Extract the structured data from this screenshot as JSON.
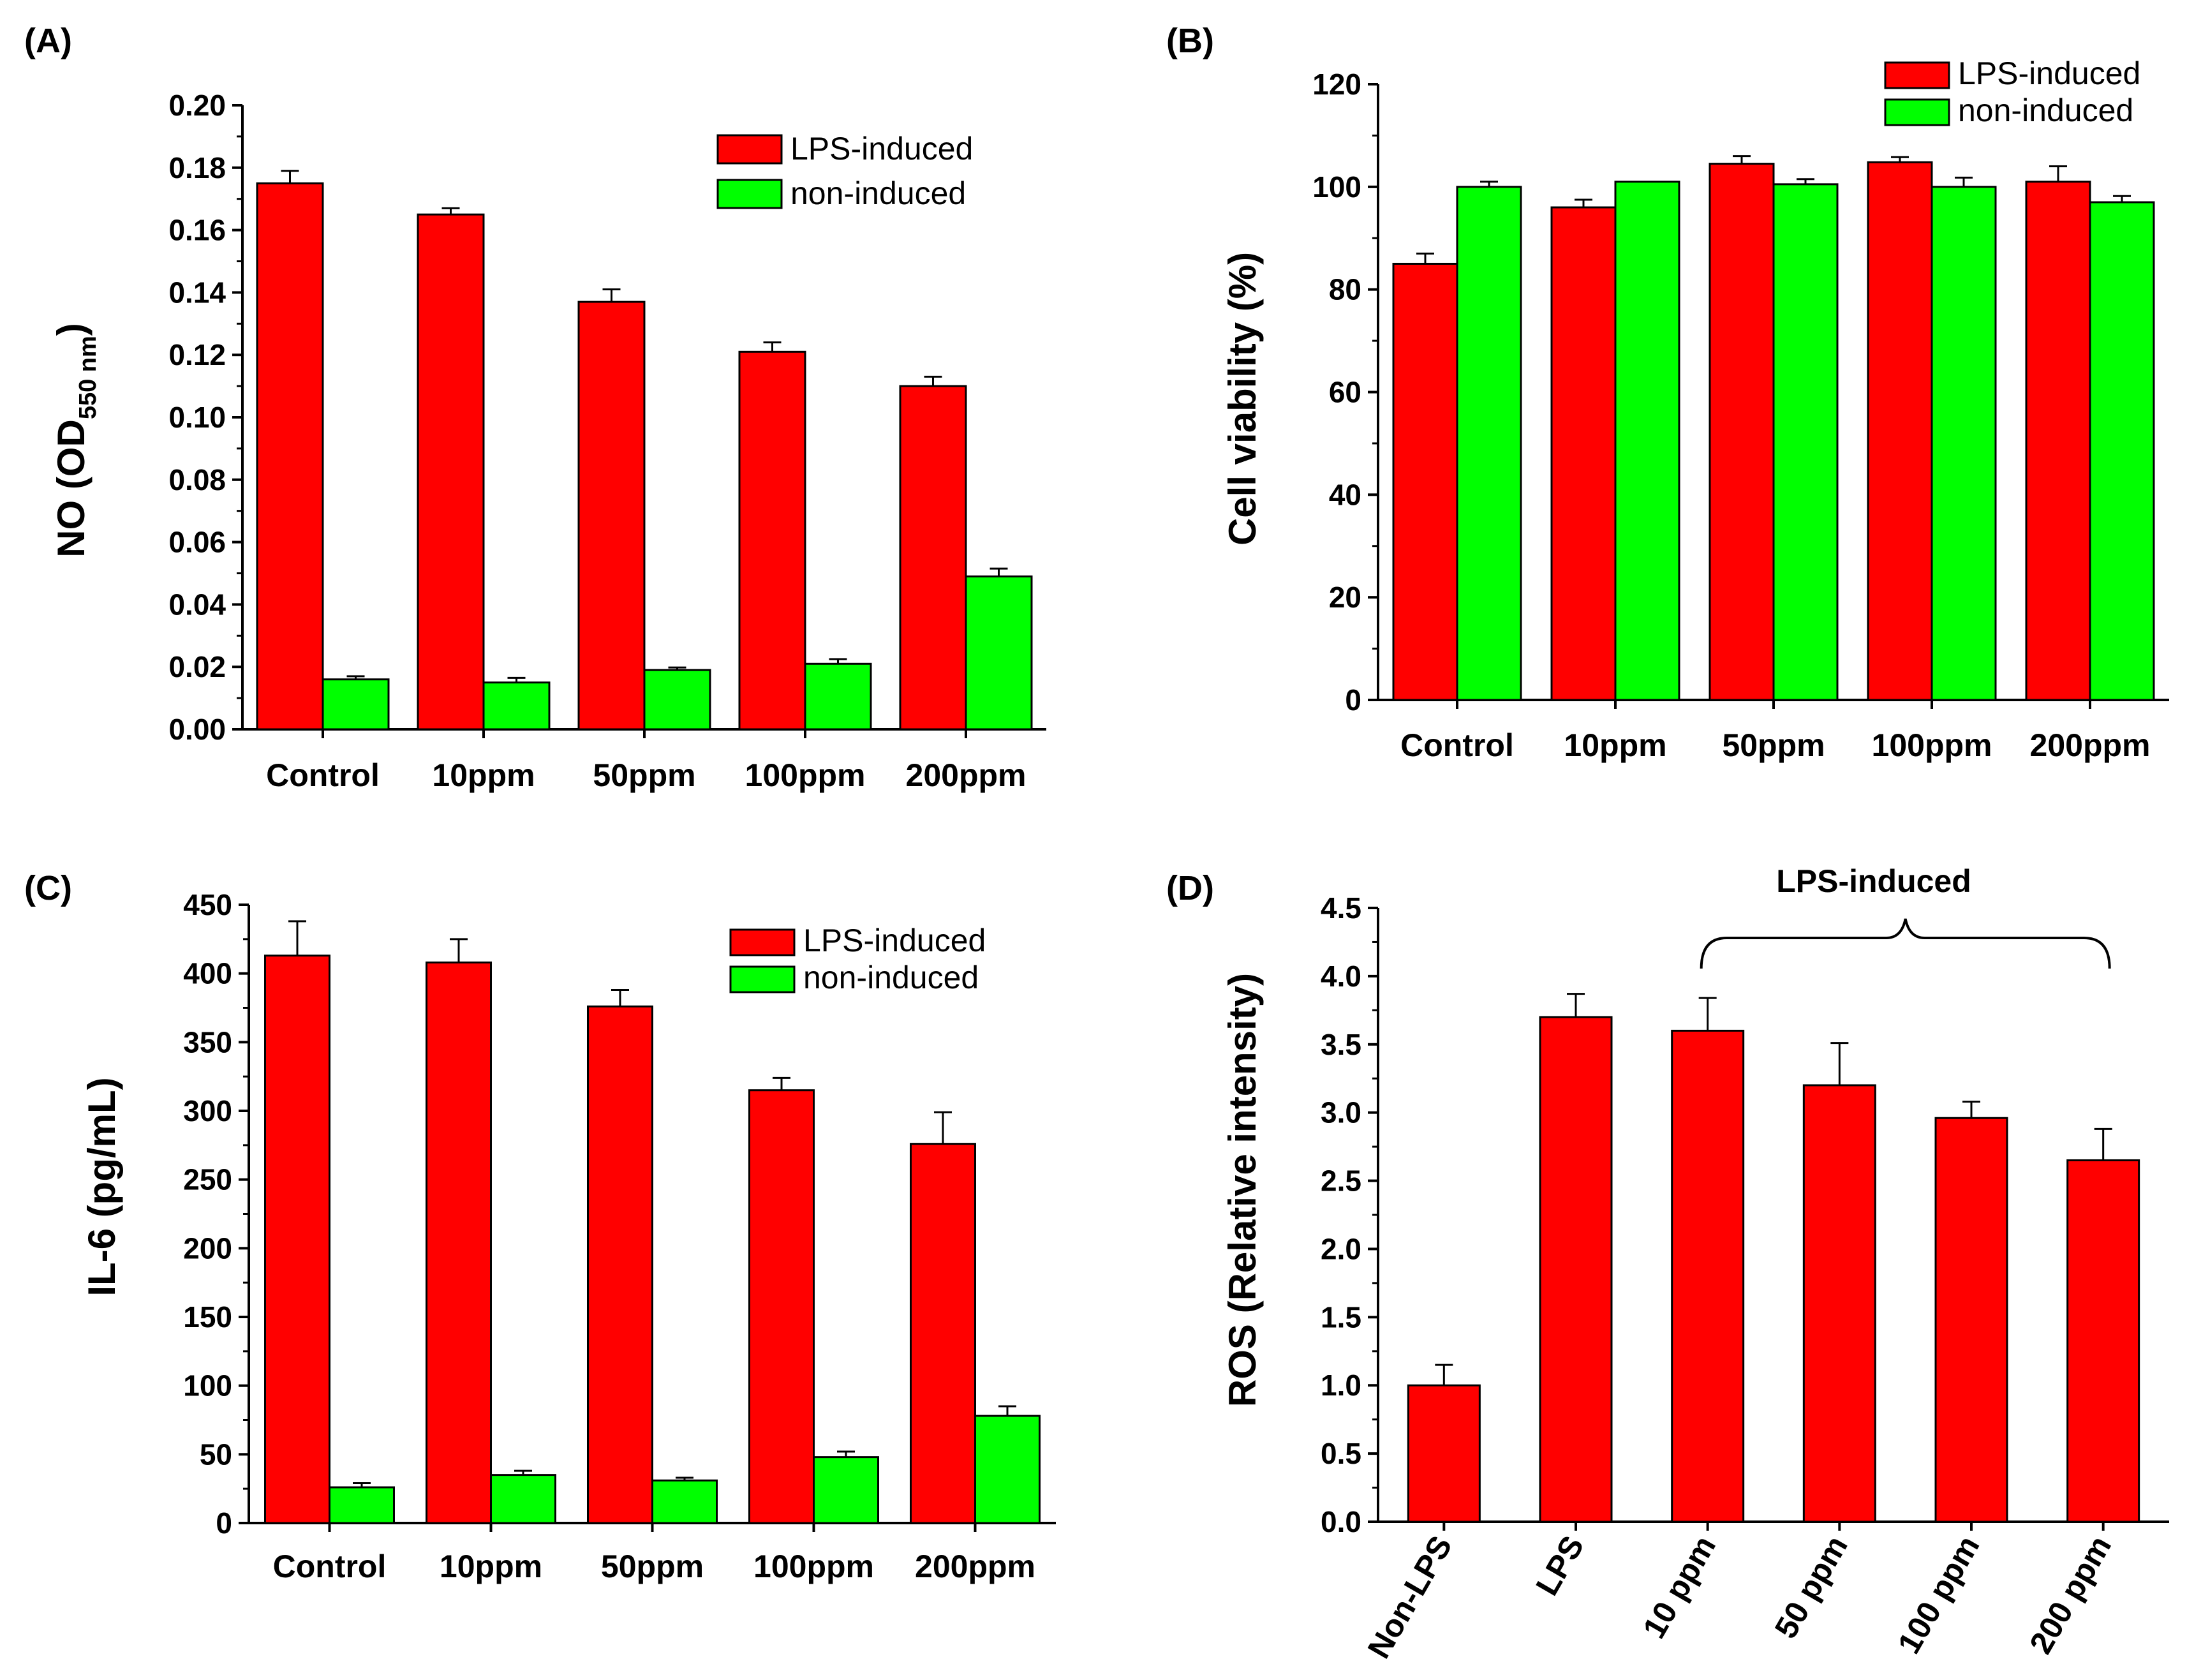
{
  "chart_data": [
    {
      "type": "bar",
      "panel": "(A)",
      "title": "",
      "xlabel": "",
      "ylabel_main": "NO (OD",
      "ylabel_sub": "550 nm",
      "ylabel_close": ")",
      "ylim": [
        0,
        0.2
      ],
      "yticks": [
        "0.00",
        "0.02",
        "0.04",
        "0.06",
        "0.08",
        "0.10",
        "0.12",
        "0.14",
        "0.16",
        "0.18",
        "0.20"
      ],
      "categories": [
        "Control",
        "10ppm",
        "50ppm",
        "100ppm",
        "200ppm"
      ],
      "series": [
        {
          "name": "LPS-induced",
          "color": "#ff0000",
          "values": [
            0.175,
            0.165,
            0.137,
            0.121,
            0.11
          ],
          "errors": [
            0.004,
            0.002,
            0.004,
            0.003,
            0.003
          ]
        },
        {
          "name": "non-induced",
          "color": "#00ff00",
          "values": [
            0.016,
            0.015,
            0.019,
            0.021,
            0.049
          ],
          "errors": [
            0.001,
            0.0015,
            0.0008,
            0.0015,
            0.0025
          ]
        }
      ],
      "legend": "top-right"
    },
    {
      "type": "bar",
      "panel": "(B)",
      "title": "",
      "xlabel": "",
      "ylabel": "Cell viability (%)",
      "ylim": [
        0,
        120
      ],
      "yticks": [
        "0",
        "20",
        "40",
        "60",
        "80",
        "100",
        "120"
      ],
      "categories": [
        "Control",
        "10ppm",
        "50ppm",
        "100ppm",
        "200ppm"
      ],
      "series": [
        {
          "name": "LPS-induced",
          "color": "#ff0000",
          "values": [
            85,
            96,
            104.5,
            104.8,
            101
          ],
          "errors": [
            2,
            1.5,
            1.5,
            1,
            3
          ]
        },
        {
          "name": "non-induced",
          "color": "#00ff00",
          "values": [
            100,
            101,
            100.5,
            100,
            97
          ],
          "errors": [
            1,
            0,
            1,
            1.8,
            1.2
          ]
        }
      ],
      "legend": "top-right"
    },
    {
      "type": "bar",
      "panel": "(C)",
      "title": "",
      "xlabel": "",
      "ylabel": "IL-6 (pg/mL)",
      "ylim": [
        0,
        450
      ],
      "yticks": [
        "0",
        "50",
        "100",
        "150",
        "200",
        "250",
        "300",
        "350",
        "400",
        "450"
      ],
      "categories": [
        "Control",
        "10ppm",
        "50ppm",
        "100ppm",
        "200ppm"
      ],
      "series": [
        {
          "name": "LPS-induced",
          "color": "#ff0000",
          "values": [
            413,
            408,
            376,
            315,
            276
          ],
          "errors": [
            25,
            17,
            12,
            9,
            23
          ]
        },
        {
          "name": "non-induced",
          "color": "#00ff00",
          "values": [
            26,
            35,
            31,
            48,
            78
          ],
          "errors": [
            3,
            3,
            2,
            4,
            7
          ]
        }
      ],
      "legend": "top-right"
    },
    {
      "type": "bar",
      "panel": "(D)",
      "title": "",
      "xlabel": "",
      "ylabel": "ROS (Relative intensity)",
      "ylim": [
        0,
        4.5
      ],
      "yticks": [
        "0.0",
        "0.5",
        "1.0",
        "1.5",
        "2.0",
        "2.5",
        "3.0",
        "3.5",
        "4.0",
        "4.5"
      ],
      "categories": [
        "Non-LPS",
        "LPS",
        "10 ppm",
        "50 ppm",
        "100 ppm",
        "200 ppm"
      ],
      "series": [
        {
          "name": "ROS",
          "color": "#ff0000",
          "values": [
            1.0,
            3.7,
            3.6,
            3.2,
            2.96,
            2.65
          ],
          "errors": [
            0.15,
            0.17,
            0.24,
            0.31,
            0.12,
            0.23
          ]
        }
      ],
      "annotation": "LPS-induced"
    }
  ]
}
